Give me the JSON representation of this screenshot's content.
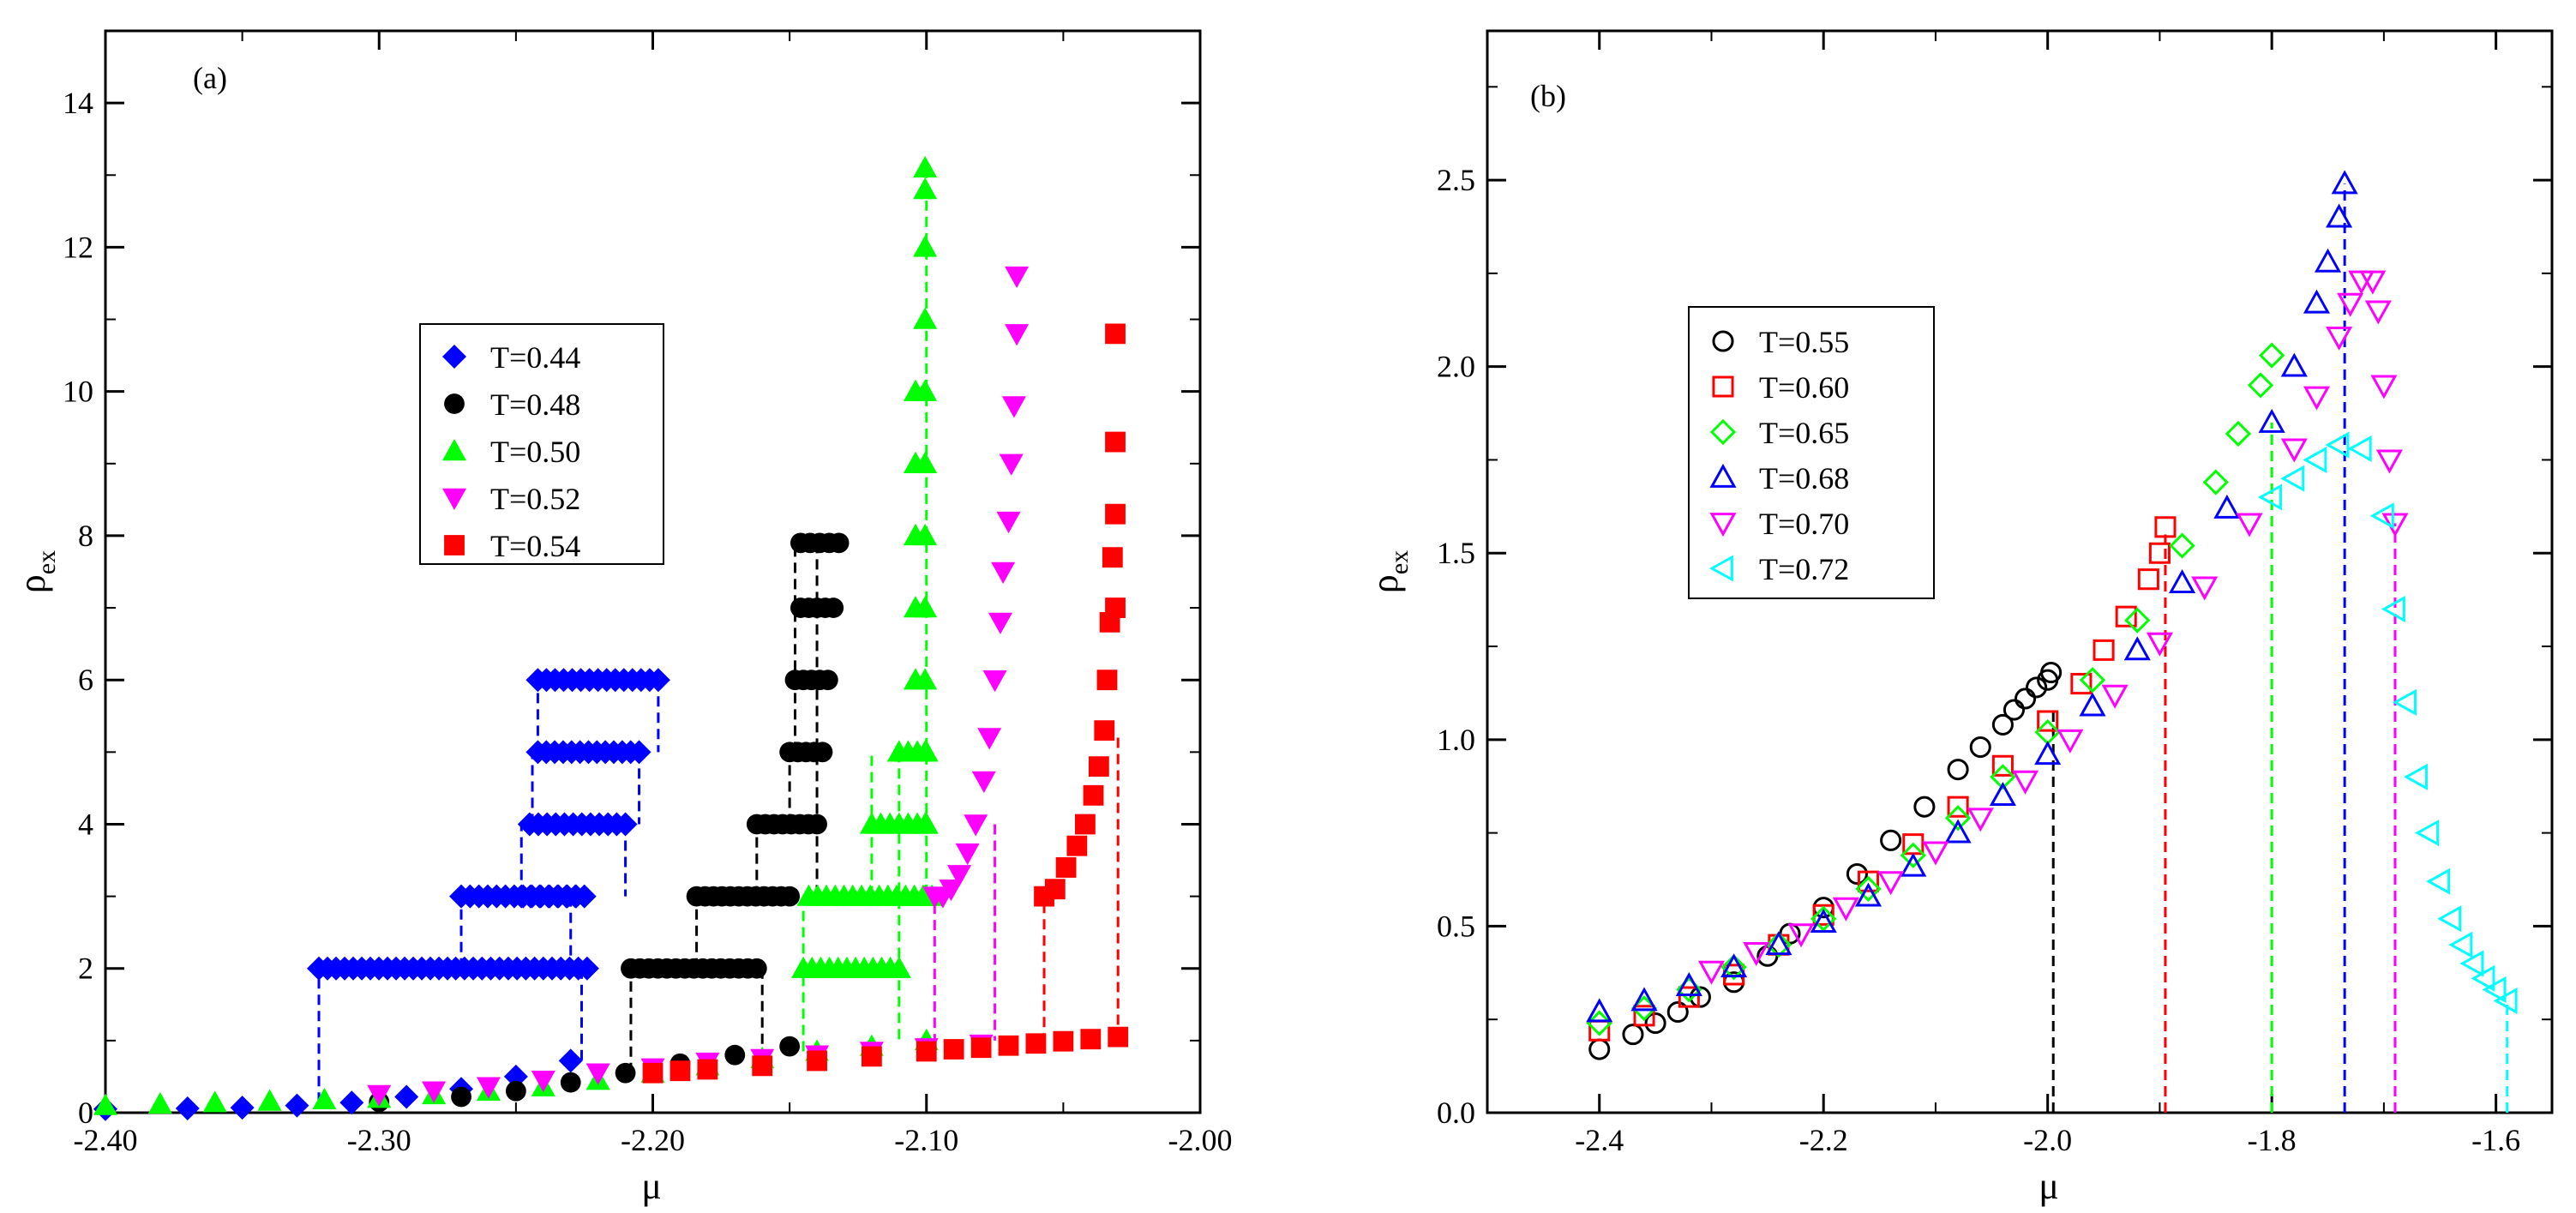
{
  "chart_data": [
    {
      "id": "a",
      "type": "scatter",
      "panel_label": "(a)",
      "xlabel": "μ",
      "ylabel": {
        "main": "ρ",
        "sub": "ex"
      },
      "xlim": [
        -2.4,
        -2.0
      ],
      "ylim": [
        0,
        15
      ],
      "xticks": [
        -2.4,
        -2.3,
        -2.2,
        -2.1,
        -2.0
      ],
      "xtick_labels": [
        "-2.40",
        "-2.30",
        "-2.20",
        "-2.10",
        "-2.00"
      ],
      "yticks": [
        0,
        2,
        4,
        6,
        8,
        10,
        12,
        14
      ],
      "ytick_labels": [
        "0",
        "2",
        "4",
        "6",
        "8",
        "10",
        "12",
        "14"
      ],
      "legend_position": "center-left",
      "series": [
        {
          "name": "T=0.44",
          "color": "#0000ff",
          "marker": "diamond-filled",
          "low_branch": {
            "x": [
              -2.4,
              -2.37,
              -2.35,
              -2.33,
              -2.31,
              -2.29,
              -2.27,
              -2.25,
              -2.23
            ],
            "y": [
              0.05,
              0.06,
              0.07,
              0.1,
              0.14,
              0.22,
              0.33,
              0.5,
              0.72
            ]
          },
          "plateaus": [
            {
              "x0": -2.322,
              "x1": -2.275,
              "y": 2
            },
            {
              "x0": -2.272,
              "x1": -2.224,
              "y": 2
            },
            {
              "x0": -2.27,
              "x1": -2.228,
              "y": 3
            },
            {
              "x0": -2.248,
              "x1": -2.225,
              "y": 3
            },
            {
              "x0": -2.245,
              "x1": -2.21,
              "y": 4
            },
            {
              "x0": -2.242,
              "x1": -2.205,
              "y": 5
            },
            {
              "x0": -2.242,
              "x1": -2.198,
              "y": 6
            }
          ],
          "jumps": [
            {
              "x": -2.322,
              "y0": 0.14,
              "y1": 2
            },
            {
              "x": -2.27,
              "y0": 2,
              "y1": 3
            },
            {
              "x": -2.248,
              "y0": 3,
              "y1": 4
            },
            {
              "x": -2.244,
              "y0": 4,
              "y1": 5
            },
            {
              "x": -2.242,
              "y0": 5,
              "y1": 6
            },
            {
              "x": -2.226,
              "y0": 2,
              "y1": 0.7
            },
            {
              "x": -2.23,
              "y0": 3,
              "y1": 2
            },
            {
              "x": -2.21,
              "y0": 4,
              "y1": 3
            },
            {
              "x": -2.205,
              "y0": 5,
              "y1": 4
            },
            {
              "x": -2.198,
              "y0": 6,
              "y1": 5
            }
          ]
        },
        {
          "name": "T=0.48",
          "color": "#000000",
          "marker": "circle-filled",
          "low_branch": {
            "x": [
              -2.3,
              -2.27,
              -2.25,
              -2.23,
              -2.21,
              -2.19,
              -2.17,
              -2.15
            ],
            "y": [
              0.15,
              0.22,
              0.3,
              0.42,
              0.55,
              0.68,
              0.8,
              0.92
            ]
          },
          "plateaus": [
            {
              "x0": -2.208,
              "x1": -2.162,
              "y": 2
            },
            {
              "x0": -2.184,
              "x1": -2.15,
              "y": 3
            },
            {
              "x0": -2.162,
              "x1": -2.14,
              "y": 4
            },
            {
              "x0": -2.15,
              "x1": -2.138,
              "y": 5
            },
            {
              "x0": -2.148,
              "x1": -2.136,
              "y": 6
            },
            {
              "x0": -2.146,
              "x1": -2.134,
              "y": 7
            },
            {
              "x0": -2.146,
              "x1": -2.132,
              "y": 7.9
            }
          ],
          "jumps": [
            {
              "x": -2.208,
              "y0": 0.55,
              "y1": 2
            },
            {
              "x": -2.184,
              "y0": 2,
              "y1": 3
            },
            {
              "x": -2.162,
              "y0": 3,
              "y1": 4
            },
            {
              "x": -2.15,
              "y0": 4,
              "y1": 5
            },
            {
              "x": -2.148,
              "y0": 5,
              "y1": 7.9
            },
            {
              "x": -2.16,
              "y0": 2,
              "y1": 0.9
            },
            {
              "x": -2.14,
              "y0": 7.9,
              "y1": 3
            }
          ]
        },
        {
          "name": "T=0.50",
          "color": "#00ff00",
          "marker": "triangle-up-filled",
          "low_branch": {
            "x": [
              -2.4,
              -2.38,
              -2.36,
              -2.34,
              -2.32,
              -2.3,
              -2.28,
              -2.26,
              -2.24,
              -2.22,
              -2.2,
              -2.18,
              -2.16,
              -2.14,
              -2.12,
              -2.1
            ],
            "y": [
              0.1,
              0.12,
              0.14,
              0.16,
              0.18,
              0.2,
              0.25,
              0.3,
              0.36,
              0.45,
              0.55,
              0.65,
              0.75,
              0.85,
              0.92,
              1.0
            ]
          },
          "plateaus": [
            {
              "x0": -2.145,
              "x1": -2.11,
              "y": 2
            },
            {
              "x0": -2.143,
              "x1": -2.098,
              "y": 3
            },
            {
              "x0": -2.12,
              "x1": -2.1,
              "y": 4
            },
            {
              "x0": -2.11,
              "x1": -2.1,
              "y": 5
            }
          ],
          "columns": [
            {
              "x": -2.1005,
              "y": [
                3,
                4,
                5,
                6,
                7,
                8,
                9,
                10,
                11,
                12,
                12.8,
                13.1
              ]
            },
            {
              "x": -2.104,
              "y": [
                6,
                7,
                8,
                9,
                10
              ]
            }
          ],
          "jumps": [
            {
              "x": -2.145,
              "y0": 0.85,
              "y1": 3
            },
            {
              "x": -2.12,
              "y0": 3,
              "y1": 5
            },
            {
              "x": -2.11,
              "y0": 5,
              "y1": 1.0
            },
            {
              "x": -2.1,
              "y0": 13.1,
              "y1": 3
            }
          ]
        },
        {
          "name": "T=0.52",
          "color": "#ff00ff",
          "marker": "triangle-down-filled",
          "low_branch": {
            "x": [
              -2.3,
              -2.28,
              -2.26,
              -2.24,
              -2.22,
              -2.2,
              -2.18,
              -2.16,
              -2.14,
              -2.12,
              -2.1,
              -2.08
            ],
            "y": [
              0.25,
              0.3,
              0.36,
              0.45,
              0.55,
              0.62,
              0.7,
              0.75,
              0.8,
              0.85,
              0.9,
              0.95
            ]
          },
          "upper_branch": {
            "x": [
              -2.097,
              -2.094,
              -2.091,
              -2.088,
              -2.085,
              -2.082,
              -2.079,
              -2.077,
              -2.075,
              -2.073,
              -2.072,
              -2.07,
              -2.069,
              -2.068,
              -2.067,
              -2.067
            ],
            "y": [
              3.0,
              3.0,
              3.1,
              3.3,
              3.6,
              4.0,
              4.6,
              5.2,
              6.0,
              6.8,
              7.5,
              8.2,
              9.0,
              9.8,
              10.8,
              11.6
            ]
          },
          "jumps": [
            {
              "x": -2.097,
              "y0": 0.95,
              "y1": 3.0
            },
            {
              "x": -2.075,
              "y0": 4.0,
              "y1": 1.0
            }
          ]
        },
        {
          "name": "T=0.54",
          "color": "#ff0000",
          "marker": "square-filled",
          "low_branch": {
            "x": [
              -2.2,
              -2.19,
              -2.18,
              -2.16,
              -2.14,
              -2.12,
              -2.1,
              -2.09,
              -2.08,
              -2.07,
              -2.06,
              -2.05,
              -2.04,
              -2.03
            ],
            "y": [
              0.55,
              0.58,
              0.6,
              0.65,
              0.72,
              0.78,
              0.85,
              0.88,
              0.9,
              0.93,
              0.96,
              0.99,
              1.02,
              1.05
            ]
          },
          "upper_branch": {
            "x": [
              -2.057,
              -2.053,
              -2.049,
              -2.045,
              -2.042,
              -2.039,
              -2.037,
              -2.035,
              -2.034,
              -2.033,
              -2.032,
              -2.031,
              -2.031,
              -2.031,
              -2.031
            ],
            "y": [
              3.0,
              3.1,
              3.4,
              3.7,
              4.0,
              4.4,
              4.8,
              5.3,
              6.0,
              6.8,
              7.7,
              8.3,
              9.3,
              10.8,
              7.0
            ]
          },
          "jumps": [
            {
              "x": -2.057,
              "y0": 0.96,
              "y1": 3.0
            },
            {
              "x": -2.03,
              "y0": 5.2,
              "y1": 1.05
            }
          ]
        }
      ]
    },
    {
      "id": "b",
      "type": "scatter",
      "panel_label": "(b)",
      "xlabel": "μ",
      "ylabel": {
        "main": "ρ",
        "sub": "ex"
      },
      "xlim": [
        -2.5,
        -1.55
      ],
      "ylim": [
        0,
        2.9
      ],
      "xticks": [
        -2.4,
        -2.2,
        -2.0,
        -1.8,
        -1.6
      ],
      "xtick_labels": [
        "-2.4",
        "-2.2",
        "-2.0",
        "-1.8",
        "-1.6"
      ],
      "yticks": [
        0,
        0.5,
        1.0,
        1.5,
        2.0,
        2.5
      ],
      "ytick_labels": [
        "0.0",
        "0.5",
        "1.0",
        "1.5",
        "2.0",
        "2.5"
      ],
      "legend_position": "center-left",
      "series": [
        {
          "name": "T=0.55",
          "color": "#000000",
          "marker": "circle-open",
          "x": [
            -2.4,
            -2.37,
            -2.35,
            -2.33,
            -2.31,
            -2.28,
            -2.25,
            -2.23,
            -2.2,
            -2.17,
            -2.14,
            -2.11,
            -2.08,
            -2.06,
            -2.04,
            -2.03,
            -2.02,
            -2.01,
            -2.0,
            -1.997
          ],
          "y": [
            0.17,
            0.21,
            0.24,
            0.27,
            0.31,
            0.35,
            0.42,
            0.48,
            0.55,
            0.64,
            0.73,
            0.82,
            0.92,
            0.98,
            1.04,
            1.08,
            1.11,
            1.14,
            1.16,
            1.18
          ],
          "dashed_x": -1.995,
          "dashed_top": 1.08
        },
        {
          "name": "T=0.60",
          "color": "#ff0000",
          "marker": "square-open",
          "x": [
            -2.4,
            -2.36,
            -2.32,
            -2.28,
            -2.24,
            -2.2,
            -2.16,
            -2.12,
            -2.08,
            -2.04,
            -2.0,
            -1.97,
            -1.95,
            -1.93,
            -1.91,
            -1.9,
            -1.895
          ],
          "y": [
            0.22,
            0.26,
            0.31,
            0.37,
            0.45,
            0.53,
            0.62,
            0.72,
            0.82,
            0.93,
            1.05,
            1.15,
            1.24,
            1.33,
            1.43,
            1.5,
            1.57
          ],
          "dashed_x": -1.895,
          "dashed_top": 1.55
        },
        {
          "name": "T=0.65",
          "color": "#00ff00",
          "marker": "diamond-open",
          "x": [
            -2.4,
            -2.36,
            -2.32,
            -2.28,
            -2.24,
            -2.2,
            -2.16,
            -2.12,
            -2.08,
            -2.04,
            -2.0,
            -1.96,
            -1.92,
            -1.88,
            -1.85,
            -1.83,
            -1.81,
            -1.8
          ],
          "y": [
            0.24,
            0.28,
            0.33,
            0.39,
            0.45,
            0.52,
            0.6,
            0.69,
            0.79,
            0.9,
            1.02,
            1.16,
            1.32,
            1.52,
            1.69,
            1.82,
            1.95,
            2.03
          ],
          "dashed_x": -1.8,
          "dashed_top": 1.85
        },
        {
          "name": "T=0.68",
          "color": "#0000ff",
          "marker": "triangle-up-open",
          "x": [
            -2.4,
            -2.36,
            -2.32,
            -2.28,
            -2.24,
            -2.2,
            -2.16,
            -2.12,
            -2.08,
            -2.04,
            -2.0,
            -1.96,
            -1.92,
            -1.88,
            -1.84,
            -1.8,
            -1.78,
            -1.76,
            -1.75,
            -1.74,
            -1.735
          ],
          "y": [
            0.27,
            0.3,
            0.34,
            0.39,
            0.45,
            0.51,
            0.58,
            0.66,
            0.75,
            0.85,
            0.96,
            1.09,
            1.24,
            1.42,
            1.62,
            1.85,
            2.0,
            2.17,
            2.28,
            2.4,
            2.49
          ],
          "dashed_x": -1.735,
          "dashed_top": 2.49
        },
        {
          "name": "T=0.70",
          "color": "#ff00ff",
          "marker": "triangle-down-open",
          "x": [
            -2.3,
            -2.26,
            -2.22,
            -2.18,
            -2.14,
            -2.1,
            -2.06,
            -2.02,
            -1.98,
            -1.94,
            -1.9,
            -1.86,
            -1.82,
            -1.78,
            -1.76,
            -1.74,
            -1.73,
            -1.72,
            -1.71,
            -1.705,
            -1.7,
            -1.695,
            -1.69
          ],
          "y": [
            0.38,
            0.43,
            0.48,
            0.55,
            0.62,
            0.7,
            0.79,
            0.89,
            1.0,
            1.12,
            1.26,
            1.41,
            1.58,
            1.78,
            1.92,
            2.08,
            2.17,
            2.23,
            2.23,
            2.15,
            1.95,
            1.75,
            1.58
          ],
          "dashed_x": -1.69,
          "dashed_top": 1.58
        },
        {
          "name": "T=0.72",
          "color": "#00ffff",
          "marker": "triangle-left-open",
          "x": [
            -1.8,
            -1.78,
            -1.76,
            -1.74,
            -1.72,
            -1.7,
            -1.69,
            -1.68,
            -1.67,
            -1.66,
            -1.65,
            -1.64,
            -1.63,
            -1.62,
            -1.61,
            -1.6,
            -1.59
          ],
          "y": [
            1.65,
            1.7,
            1.75,
            1.79,
            1.78,
            1.6,
            1.35,
            1.1,
            0.9,
            0.75,
            0.62,
            0.52,
            0.45,
            0.4,
            0.36,
            0.33,
            0.3
          ],
          "dashed_x": -1.59,
          "dashed_top": 0.3
        }
      ]
    }
  ]
}
